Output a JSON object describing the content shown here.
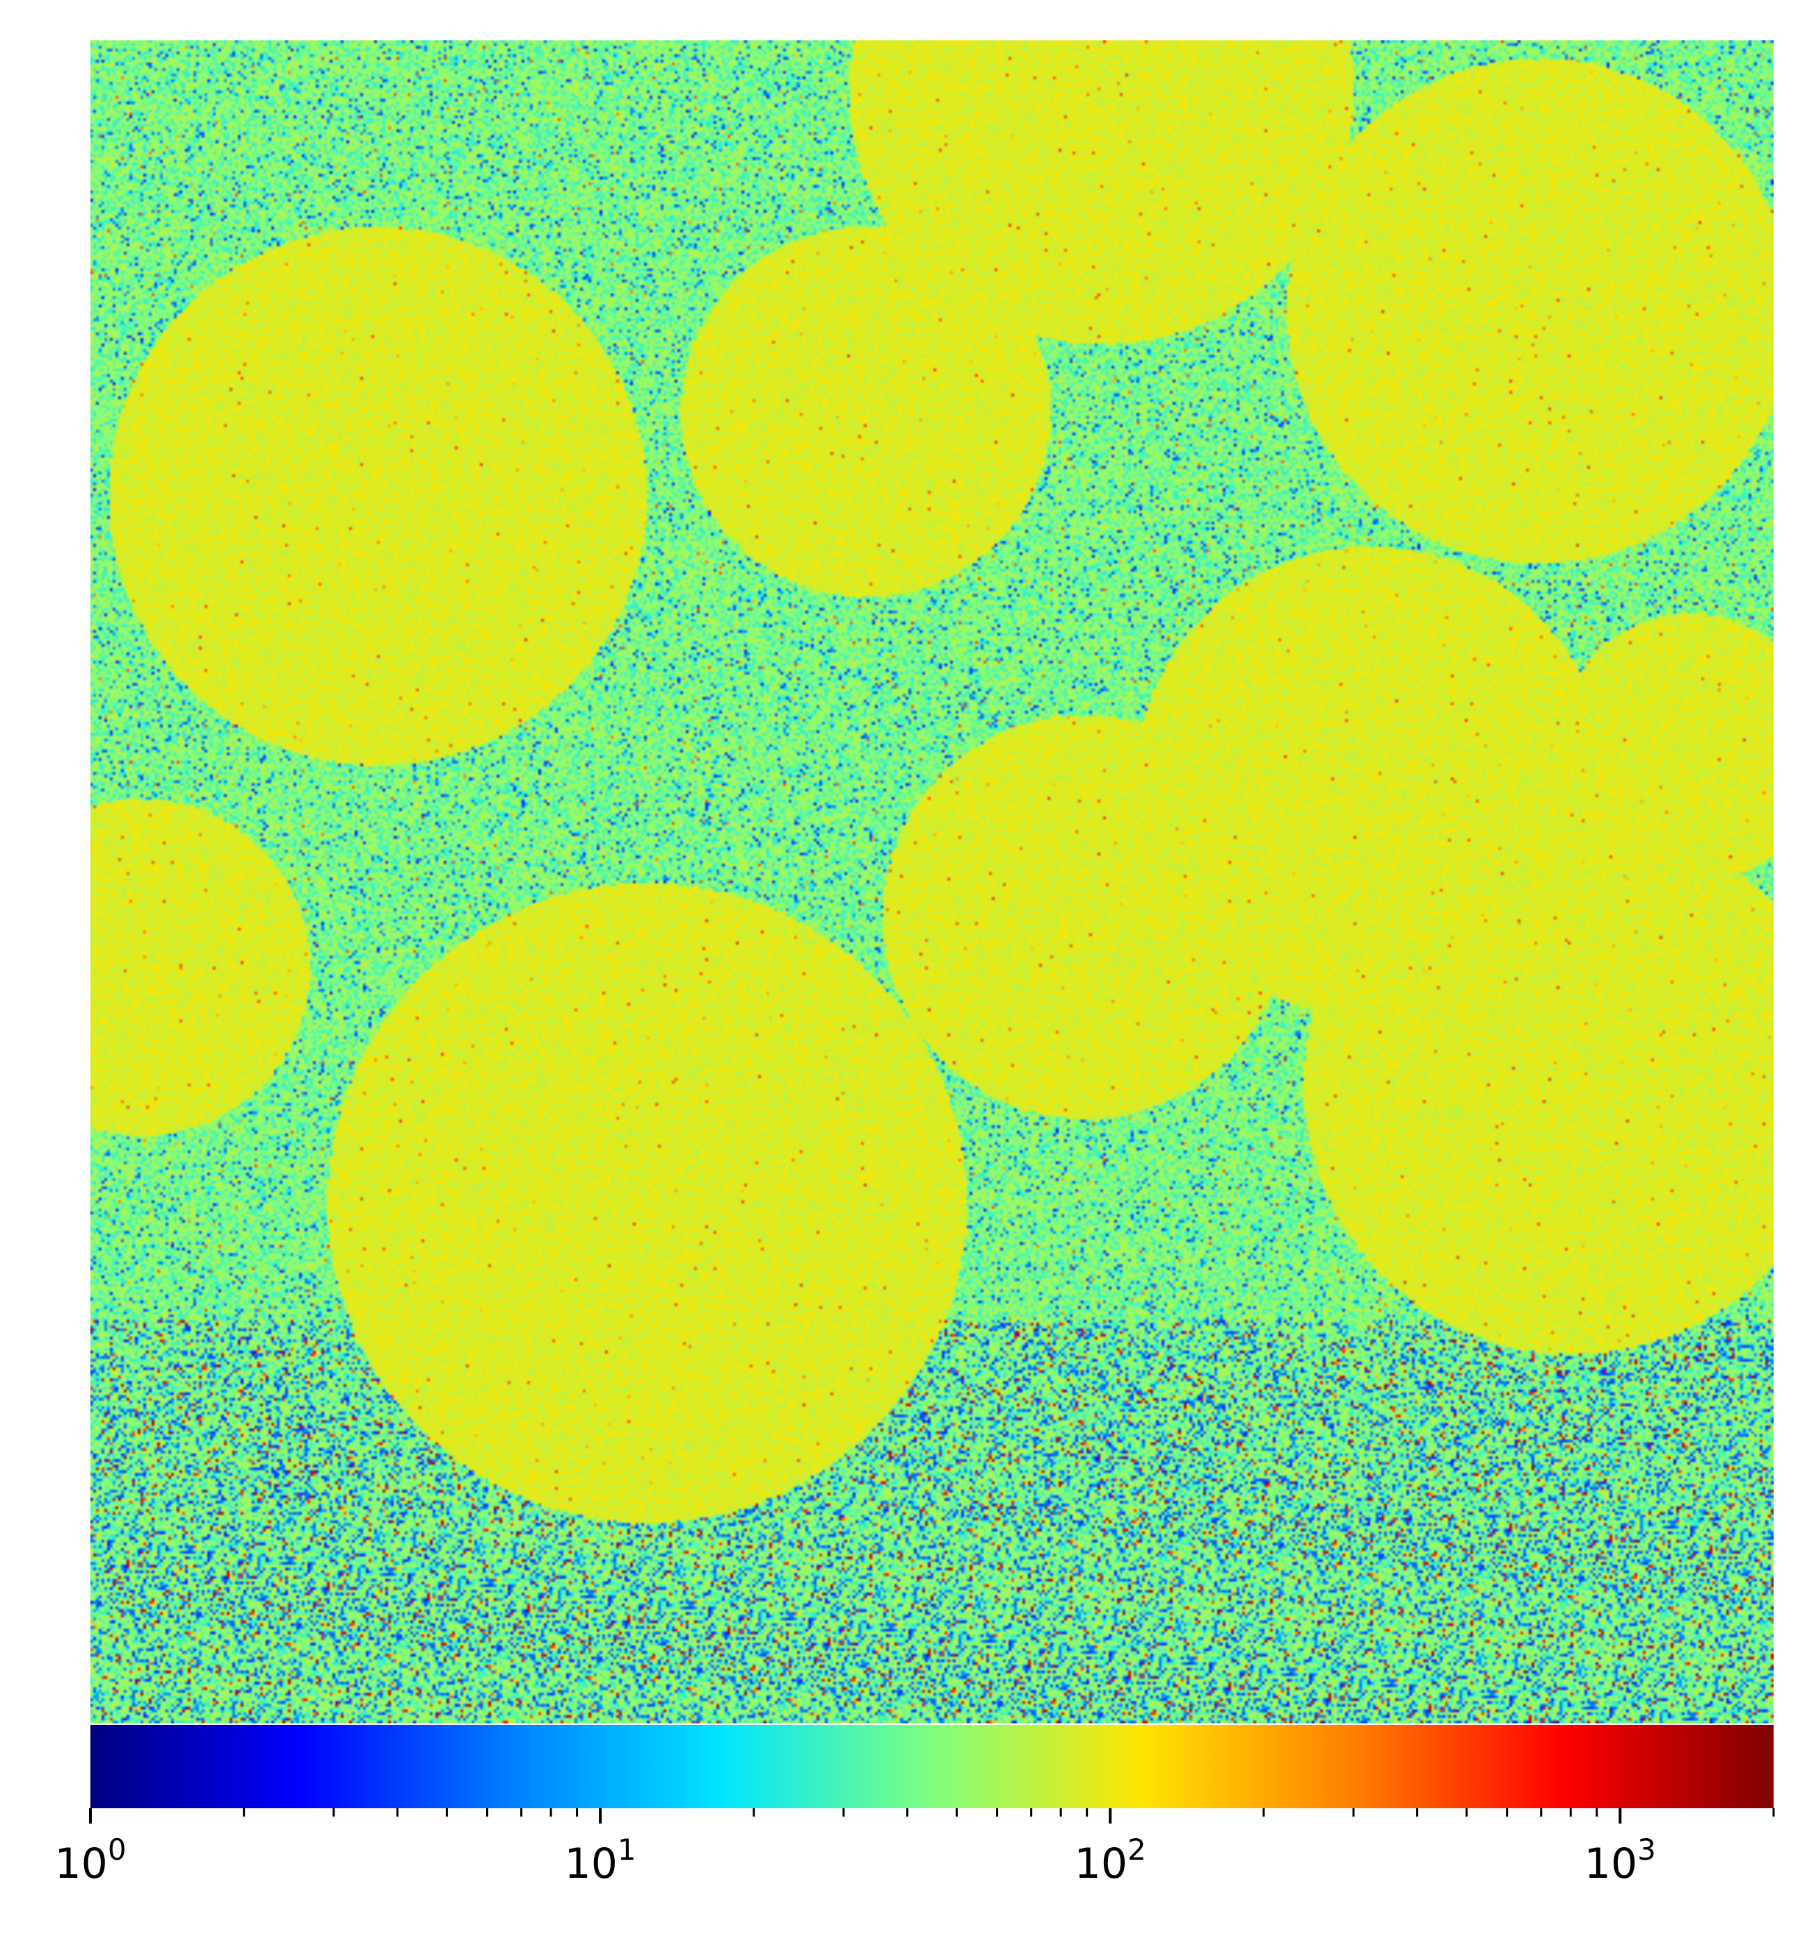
{
  "chart_data": {
    "type": "heatmap",
    "title": "",
    "xlabel": "",
    "ylabel": "",
    "axes_visible": false,
    "colormap": "jet",
    "colorbar": {
      "orientation": "horizontal",
      "placement": "bottom",
      "scale": "log",
      "range": [
        1,
        2000
      ],
      "major_ticks": [
        {
          "value": 1,
          "base": "10",
          "exp": "0"
        },
        {
          "value": 10,
          "base": "10",
          "exp": "1"
        },
        {
          "value": 100,
          "base": "10",
          "exp": "2"
        },
        {
          "value": 1000,
          "base": "10",
          "exp": "3"
        }
      ],
      "minor_ticks": [
        2,
        3,
        4,
        5,
        6,
        7,
        8,
        9,
        20,
        30,
        40,
        50,
        60,
        70,
        80,
        90,
        200,
        300,
        400,
        500,
        600,
        700,
        800,
        900,
        2000
      ]
    },
    "dominant_value_range": [
      40,
      120
    ],
    "colors": {
      "jet_stops": [
        "#00007f",
        "#0000ff",
        "#007fff",
        "#00e5ff",
        "#7fff7f",
        "#ffe500",
        "#ff7f00",
        "#ff0000",
        "#7f0000"
      ]
    }
  }
}
